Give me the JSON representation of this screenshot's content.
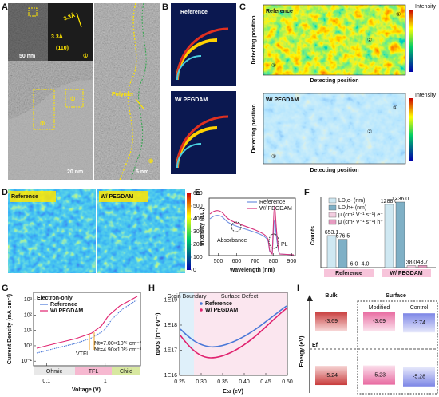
{
  "panel_labels": [
    "A",
    "B",
    "C",
    "D",
    "E",
    "F",
    "G",
    "H",
    "I"
  ],
  "A": {
    "inset_scale": "50 nm",
    "d_spacing_1": "3.3Å",
    "d_spacing_2": "3.3Å",
    "plane": "(110)",
    "inset_marker": "①",
    "region_1": "①",
    "region_2": "②",
    "polymer": "Polymer",
    "scale_1": "20 nm",
    "scale_2": "5 nm",
    "zoom_marker": "②"
  },
  "B": {
    "top": "Reference",
    "bottom": "W/ PEGDAM"
  },
  "C": {
    "top_title": "Reference",
    "bottom_title": "W/ PEGDAM",
    "axis_label": "Detecting position",
    "colorbar_label": "Intensity",
    "markers": [
      "①",
      "②",
      "③"
    ]
  },
  "D": {
    "left": "Reference",
    "right": "W/ PEGDAM",
    "colorbar_lim": [
      0,
      600
    ],
    "colorbar_ticks": [
      600,
      500,
      400,
      300,
      200,
      100,
      0
    ]
  },
  "E": {
    "series": [
      {
        "name": "Reference",
        "color": "#6f8fe0"
      },
      {
        "name": "W/ PEGDAM",
        "color": "#d6357e"
      }
    ],
    "ylabel": "Intensity (a.u.)",
    "xlabel": "Wavelength (nm)",
    "xlim": [
      450,
      920
    ],
    "xticks": [
      500,
      600,
      700,
      800,
      900
    ],
    "annotations": [
      "Absorbance",
      "PL"
    ]
  },
  "F": {
    "type": "bar",
    "ylabel": "Counts",
    "categories": [
      "Reference",
      "W/ PEGDAM"
    ],
    "ylim": [
      0,
      1450
    ],
    "series": [
      {
        "name": "LD,e- (nm)",
        "color": "#cfe8f2",
        "values": [
          653.1,
          1288.0
        ],
        "value_labels": [
          "653.1",
          "1288.0"
        ]
      },
      {
        "name": "LD,h+ (nm)",
        "color": "#7fb0c6",
        "values": [
          576.5,
          1336.0
        ],
        "value_labels": [
          "576.5",
          "1336.0"
        ]
      },
      {
        "name": "μ (cm² V⁻¹ s⁻¹) e⁻",
        "color": "#f3cde0",
        "values": [
          6.0,
          38.0
        ],
        "value_labels": [
          "6.0",
          "38.0"
        ]
      },
      {
        "name": "μ (cm² V⁻¹ s⁻¹) h⁺",
        "color": "#e79cc1",
        "values": [
          4.0,
          43.7
        ],
        "value_labels": [
          "4.0",
          "43.7"
        ]
      }
    ]
  },
  "G": {
    "title": "Electron-only",
    "series": [
      {
        "name": "Reference",
        "color": "#4a78d8"
      },
      {
        "name": "W/ PEGDAM",
        "color": "#e0226f"
      }
    ],
    "ylabel": "Current Density (mA cm⁻²)",
    "xlabel": "Voltage (V)",
    "xlim": [
      0.06,
      4
    ],
    "xticks": [
      {
        "value": 0.1,
        "label": "0.1"
      },
      1
    ],
    "ylim": [
      0.05,
      3000
    ],
    "yticks": [
      {
        "value": 1000,
        "label": "10³"
      },
      {
        "value": 100,
        "label": "10²"
      },
      {
        "value": 10,
        "label": "10¹"
      },
      {
        "value": 1,
        "label": "10⁰"
      },
      {
        "value": 0.1,
        "label": "10⁻¹"
      }
    ],
    "annotations": [
      "Nt=7.00×10¹⁵ cm⁻³",
      "Nt=4.90×10¹⁵ cm⁻³",
      "VTFL"
    ],
    "regions": [
      "Ohmic",
      "TFL",
      "Child"
    ]
  },
  "H": {
    "regions": [
      "Grain Boundary",
      "Surface Defect"
    ],
    "series": [
      {
        "name": "Reference",
        "color": "#4a78d8"
      },
      {
        "name": "W/ PEGDAM",
        "color": "#e0226f"
      }
    ],
    "ylabel": "tDOS (m⁻³ eV⁻¹)",
    "xlabel": "Eω (eV)",
    "xlim": [
      0.25,
      0.5
    ],
    "xticks": [
      {
        "value": 0.25,
        "label": "0.25"
      },
      {
        "value": 0.3,
        "label": "0.30"
      },
      {
        "value": 0.35,
        "label": "0.35"
      },
      {
        "value": 0.4,
        "label": "0.40"
      },
      {
        "value": 0.45,
        "label": "0.45"
      },
      {
        "value": 0.5,
        "label": "0.50"
      }
    ],
    "ylim": [
      1e+16,
      2e+19
    ],
    "yticks": [
      {
        "value": 1e+19,
        "label": "1E19"
      },
      {
        "value": 1e+18,
        "label": "1E18"
      },
      {
        "value": 1e+17,
        "label": "1E17"
      },
      {
        "value": 1e+16,
        "label": "1E16"
      }
    ]
  },
  "I": {
    "ylabel": "Energy (eV)",
    "fermi": "Ef",
    "headers": [
      "Bulk",
      "Surface"
    ],
    "subheaders": [
      "Modified",
      "Control"
    ],
    "levels": [
      {
        "lumo": -3.69,
        "homo": -5.24,
        "lumo_label": "-3.69",
        "homo_label": "-5.24"
      },
      {
        "lumo": -3.69,
        "homo": -5.23,
        "lumo_label": "-3.69",
        "homo_label": "-5.23"
      },
      {
        "lumo": -3.74,
        "homo": -5.28,
        "lumo_label": "-3.74",
        "homo_label": "-5.28"
      }
    ]
  }
}
